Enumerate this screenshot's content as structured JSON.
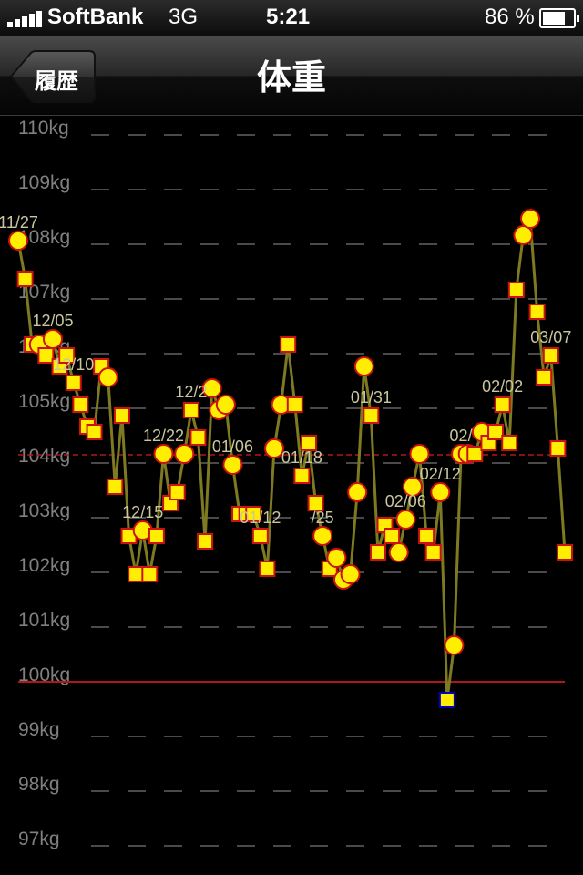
{
  "status_bar": {
    "carrier": "SoftBank",
    "network": "3G",
    "time": "5:21",
    "battery": "86 %",
    "battery_level": 0.86,
    "signal_bars": 5
  },
  "nav": {
    "back_label": "履歴",
    "title": "体重"
  },
  "chart_data": {
    "type": "line",
    "y_unit": "kg",
    "ylim": [
      96.7,
      110.4
    ],
    "y_ticks": [
      110,
      109,
      108,
      107,
      106,
      105,
      104,
      103,
      102,
      101,
      100,
      99,
      98,
      97
    ],
    "y_tick_labels": [
      "110kg",
      "109kg",
      "108kg",
      "107kg",
      "106kg",
      "105kg",
      "104kg",
      "103kg",
      "102kg",
      "101kg",
      "100kg",
      "99kg",
      "98kg",
      "97kg"
    ],
    "grid": true,
    "target": 100.0,
    "average": 104.0,
    "colors": {
      "line": "#7d7a22",
      "marker": "#ffee00",
      "marker_edge": "#cc1111",
      "min_edge": "#0000cc",
      "target": "#b01818",
      "average": "#b01818",
      "grid": "#4a4a4a",
      "label": "#c9c6a0"
    },
    "series": [
      {
        "values": [
          107.9,
          107.2,
          106.0,
          106.0,
          105.8,
          106.1,
          105.6,
          105.8,
          105.3,
          104.9,
          104.5,
          104.4,
          105.6,
          105.4,
          103.4,
          104.7,
          102.5,
          101.8,
          102.6,
          101.8,
          102.5,
          104.0,
          103.1,
          103.3,
          104.0,
          104.8,
          104.3,
          102.4,
          105.2,
          104.8,
          104.9,
          103.8,
          102.9,
          102.9,
          102.9,
          102.5,
          101.9,
          104.1,
          104.9,
          106.0,
          104.9,
          103.6,
          104.2,
          103.1,
          102.5,
          101.9,
          102.1,
          101.7,
          101.8,
          103.3,
          105.6,
          104.7,
          102.2,
          102.7,
          102.5,
          102.2,
          102.8,
          103.4,
          104.0,
          102.5,
          102.2,
          103.3,
          99.5,
          100.5,
          104.0,
          104.0,
          104.0,
          104.4,
          104.2,
          104.4,
          104.9,
          104.2,
          107.0,
          108.0,
          108.3,
          106.6,
          105.4,
          105.8,
          104.1,
          102.2
        ],
        "markers": [
          "circle",
          "square",
          "square",
          "circle",
          "square",
          "circle",
          "square",
          "square",
          "square",
          "square",
          "square",
          "square",
          "square",
          "circle",
          "square",
          "square",
          "square",
          "square",
          "circle",
          "square",
          "square",
          "circle",
          "square",
          "square",
          "circle",
          "square",
          "square",
          "square",
          "circle",
          "circle",
          "circle",
          "circle",
          "square",
          "square",
          "square",
          "square",
          "square",
          "circle",
          "circle",
          "square",
          "square",
          "square",
          "square",
          "square",
          "circle",
          "square",
          "circle",
          "circle",
          "circle",
          "circle",
          "circle",
          "square",
          "square",
          "square",
          "square",
          "circle",
          "circle",
          "circle",
          "circle",
          "square",
          "square",
          "circle",
          "square",
          "circle",
          "circle",
          "circle",
          "square",
          "circle",
          "square",
          "square",
          "square",
          "square",
          "square",
          "circle",
          "circle",
          "square",
          "square",
          "square",
          "square",
          "square"
        ]
      }
    ],
    "annotations": [
      {
        "label": "11/27",
        "index": 0
      },
      {
        "label": "12/05",
        "index": 5
      },
      {
        "label": "12/10",
        "index": 8
      },
      {
        "label": "12/15",
        "index": 18
      },
      {
        "label": "12/22",
        "index": 21
      },
      {
        "label": "12/2",
        "index": 25
      },
      {
        "label": "01/06",
        "index": 31
      },
      {
        "label": "01/12",
        "index": 35
      },
      {
        "label": "01/18",
        "index": 41
      },
      {
        "label": "/25",
        "index": 44
      },
      {
        "label": "01/31",
        "index": 51
      },
      {
        "label": "02/06",
        "index": 56
      },
      {
        "label": "02/12",
        "index": 61
      },
      {
        "label": "02/",
        "index": 64
      },
      {
        "label": "02/02",
        "index": 70
      },
      {
        "label": "03/07",
        "index": 77
      }
    ]
  }
}
